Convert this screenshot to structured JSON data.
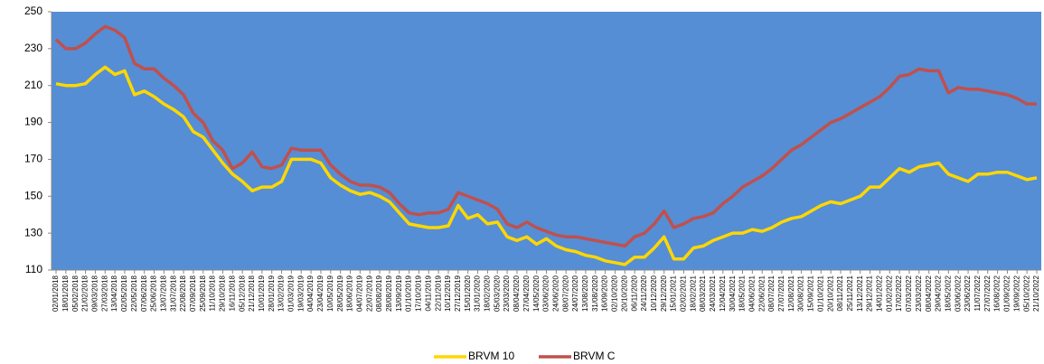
{
  "chart_data": {
    "type": "line",
    "categories": [
      "02/01/2018",
      "18/01/2018",
      "05/02/2018",
      "21/02/2018",
      "09/03/2018",
      "27/03/2018",
      "13/04/2018",
      "02/05/2018",
      "22/05/2018",
      "07/06/2018",
      "25/06/2018",
      "13/07/2018",
      "31/07/2018",
      "22/08/2018",
      "07/09/2018",
      "25/09/2018",
      "11/10/2018",
      "29/10/2018",
      "16/11/2018",
      "05/12/2018",
      "21/12/2018",
      "10/01/2019",
      "28/01/2019",
      "13/02/2019",
      "01/03/2019",
      "19/03/2019",
      "04/04/2019",
      "23/04/2019",
      "10/05/2019",
      "28/05/2019",
      "18/06/2019",
      "04/07/2019",
      "22/07/2019",
      "08/08/2019",
      "28/08/2019",
      "13/09/2019",
      "01/10/2019",
      "17/10/2019",
      "04/11/2019",
      "22/11/2019",
      "10/12/2019",
      "27/12/2019",
      "15/01/2020",
      "31/01/2020",
      "18/02/2020",
      "05/03/2020",
      "23/03/2020",
      "08/04/2020",
      "27/04/2020",
      "14/05/2020",
      "03/06/2020",
      "24/06/2020",
      "08/07/2020",
      "24/07/2020",
      "13/08/2020",
      "31/08/2020",
      "16/09/2020",
      "02/10/2020",
      "20/10/2020",
      "06/11/2020",
      "24/11/2020",
      "10/12/2020",
      "29/12/2020",
      "15/01/2021",
      "02/02/2021",
      "18/02/2021",
      "08/03/2021",
      "24/03/2021",
      "12/04/2021",
      "30/04/2021",
      "18/05/2021",
      "04/06/2021",
      "22/06/2021",
      "08/07/2021",
      "27/07/2021",
      "12/08/2021",
      "30/08/2021",
      "15/09/2021",
      "01/10/2021",
      "20/10/2021",
      "08/11/2021",
      "25/11/2021",
      "13/12/2021",
      "29/12/2021",
      "14/01/2022",
      "01/02/2022",
      "17/02/2022",
      "07/03/2022",
      "23/03/2022",
      "08/04/2022",
      "29/04/2022",
      "18/05/2022",
      "03/06/2022",
      "23/06/2022",
      "11/07/2022",
      "27/07/2022",
      "16/08/2022",
      "01/09/2022",
      "19/09/2022",
      "05/10/2022",
      "21/10/2022"
    ],
    "series": [
      {
        "name": "BRVM 10",
        "color": "#ffd700",
        "values": [
          211,
          210,
          210,
          211,
          216,
          220,
          216,
          218,
          205,
          207,
          204,
          200,
          197,
          193,
          185,
          182,
          175,
          168,
          162,
          158,
          153,
          155,
          155,
          158,
          170,
          170,
          170,
          168,
          160,
          156,
          153,
          151,
          152,
          150,
          147,
          141,
          135,
          134,
          133,
          133,
          134,
          145,
          138,
          140,
          135,
          136,
          128,
          126,
          128,
          124,
          127,
          123,
          121,
          120,
          118,
          117,
          115,
          114,
          113,
          117,
          117,
          122,
          128,
          116,
          116,
          122,
          123,
          126,
          128,
          130,
          130,
          132,
          131,
          133,
          136,
          138,
          139,
          142,
          145,
          147,
          146,
          148,
          150,
          155,
          155,
          160,
          165,
          163,
          166,
          167,
          168,
          162,
          160,
          158,
          162,
          162,
          163,
          163,
          161,
          159,
          160
        ]
      },
      {
        "name": "BRVM C",
        "color": "#c0504d",
        "values": [
          235,
          230,
          230,
          233,
          238,
          242,
          240,
          236,
          222,
          219,
          219,
          214,
          210,
          205,
          195,
          190,
          180,
          175,
          165,
          168,
          174,
          166,
          165,
          167,
          176,
          175,
          175,
          175,
          167,
          162,
          158,
          156,
          156,
          155,
          152,
          146,
          141,
          140,
          141,
          141,
          143,
          152,
          150,
          148,
          146,
          143,
          135,
          133,
          136,
          133,
          131,
          129,
          128,
          128,
          127,
          126,
          125,
          124,
          123,
          128,
          130,
          135,
          142,
          133,
          135,
          138,
          139,
          141,
          146,
          150,
          155,
          158,
          161,
          165,
          170,
          175,
          178,
          182,
          186,
          190,
          192,
          195,
          198,
          201,
          204,
          209,
          215,
          216,
          219,
          218,
          218,
          206,
          209,
          208,
          208,
          207,
          206,
          205,
          203,
          200,
          200
        ]
      }
    ],
    "ylim": [
      110,
      250
    ],
    "yticks": [
      110,
      130,
      150,
      170,
      190,
      210,
      230,
      250
    ],
    "background": "#558ed5"
  }
}
